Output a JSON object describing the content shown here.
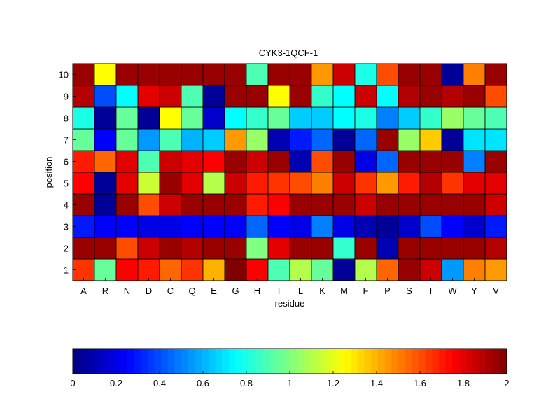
{
  "chart_data": {
    "type": "heatmap",
    "title": "CYK3-1QCF-1",
    "xlabel": "residue",
    "ylabel": "position",
    "x_categories": [
      "A",
      "R",
      "N",
      "D",
      "C",
      "Q",
      "E",
      "G",
      "H",
      "I",
      "L",
      "K",
      "M",
      "F",
      "P",
      "S",
      "T",
      "W",
      "Y",
      "V"
    ],
    "y_categories": [
      "1",
      "2",
      "3",
      "4",
      "5",
      "6",
      "7",
      "8",
      "9",
      "10"
    ],
    "values": [
      [
        1.65,
        0.95,
        1.75,
        1.7,
        1.55,
        1.65,
        1.4,
        2.0,
        1.75,
        0.9,
        1.1,
        0.95,
        0.05,
        1.1,
        1.55,
        1.95,
        1.85,
        0.55,
        1.5,
        1.45
      ],
      [
        1.95,
        1.95,
        1.6,
        1.85,
        1.95,
        1.9,
        1.95,
        1.95,
        1.0,
        1.8,
        1.95,
        1.95,
        0.85,
        1.95,
        0.1,
        1.95,
        1.95,
        1.95,
        1.95,
        1.9
      ],
      [
        0.3,
        0.25,
        0.25,
        0.2,
        0.2,
        0.25,
        0.25,
        0.25,
        0.45,
        0.25,
        0.2,
        0.5,
        0.2,
        0.1,
        0.05,
        0.15,
        0.4,
        0.25,
        0.15,
        0.3
      ],
      [
        1.95,
        0.05,
        1.95,
        1.6,
        1.85,
        1.95,
        1.95,
        1.95,
        1.7,
        1.75,
        1.95,
        1.95,
        1.95,
        1.85,
        1.95,
        1.95,
        1.95,
        1.95,
        1.95,
        1.85
      ],
      [
        1.75,
        0.05,
        1.8,
        1.15,
        1.95,
        1.8,
        1.1,
        1.85,
        1.7,
        1.65,
        1.6,
        1.5,
        1.85,
        1.65,
        1.45,
        1.7,
        1.9,
        1.65,
        1.8,
        1.8
      ],
      [
        1.7,
        1.55,
        1.8,
        0.9,
        1.85,
        1.8,
        1.75,
        1.95,
        1.85,
        1.95,
        0.1,
        1.6,
        1.95,
        0.2,
        0.45,
        1.95,
        1.95,
        1.95,
        0.5,
        1.95
      ],
      [
        0.95,
        0.25,
        0.95,
        0.55,
        0.9,
        0.6,
        0.65,
        1.45,
        1.05,
        0.1,
        0.3,
        0.45,
        0.05,
        0.45,
        1.95,
        1.05,
        1.35,
        0.05,
        0.7,
        0.7
      ],
      [
        0.8,
        0.05,
        0.95,
        0.05,
        1.25,
        0.95,
        0.15,
        0.75,
        0.85,
        0.95,
        0.65,
        0.65,
        0.75,
        0.8,
        0.5,
        0.65,
        0.85,
        1.05,
        0.95,
        0.9
      ],
      [
        1.9,
        0.4,
        0.75,
        1.8,
        1.85,
        0.9,
        0.05,
        1.95,
        1.95,
        1.25,
        1.95,
        0.85,
        0.75,
        1.85,
        0.75,
        1.9,
        1.95,
        1.9,
        1.95,
        1.6
      ],
      [
        1.95,
        1.25,
        1.95,
        1.95,
        1.95,
        1.95,
        1.95,
        1.95,
        0.9,
        1.95,
        1.95,
        1.45,
        1.85,
        0.8,
        1.6,
        1.95,
        1.95,
        0.05,
        1.5,
        1.95
      ]
    ],
    "colormap": "jet",
    "clim": [
      0,
      2
    ],
    "colorbar": {
      "location": "bottom",
      "ticks": [
        0,
        0.2,
        0.4,
        0.6,
        0.8,
        1,
        1.2,
        1.4,
        1.6,
        1.8,
        2
      ],
      "tick_labels": [
        "0",
        "0.2",
        "0.4",
        "0.6",
        "0.8",
        "1",
        "1.2",
        "1.4",
        "1.6",
        "1.8",
        "2"
      ]
    },
    "grid": false
  }
}
